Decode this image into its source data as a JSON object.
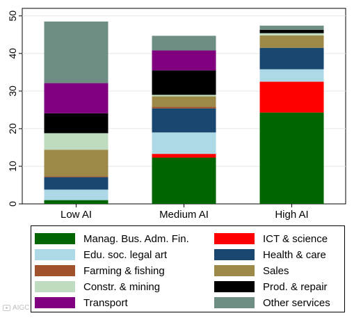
{
  "chart_data": {
    "type": "stacked-bar",
    "categories": [
      "Low AI",
      "Medium AI",
      "High AI"
    ],
    "ylim": [
      0,
      52
    ],
    "yticks": [
      0,
      10,
      20,
      30,
      40,
      50
    ],
    "grid": true,
    "legend_position": "bottom",
    "series": [
      {
        "name": "Manag. Bus. Adm. Fin.",
        "color": "#006400",
        "values": [
          1.0,
          12.3,
          24.3
        ]
      },
      {
        "name": "ICT & science",
        "color": "#ff0000",
        "values": [
          0.0,
          1.0,
          8.2
        ]
      },
      {
        "name": "Edu. soc. legal art",
        "color": "#add8e6",
        "values": [
          2.8,
          5.7,
          3.3
        ]
      },
      {
        "name": "Health & care",
        "color": "#1a476f",
        "values": [
          3.3,
          6.4,
          5.7
        ]
      },
      {
        "name": "Farming & fishing",
        "color": "#a0522d",
        "values": [
          0.2,
          0.4,
          0.0
        ]
      },
      {
        "name": "Sales",
        "color": "#9c8847",
        "values": [
          7.1,
          2.8,
          3.3
        ]
      },
      {
        "name": "Constr. & mining",
        "color": "#c0dcc0",
        "values": [
          4.4,
          0.4,
          0.6
        ]
      },
      {
        "name": "Prod. & repair",
        "color": "#000000",
        "values": [
          5.3,
          6.5,
          0.9
        ]
      },
      {
        "name": "Transport",
        "color": "#800080",
        "values": [
          8.0,
          5.3,
          0.0
        ]
      },
      {
        "name": "Other services",
        "color": "#6e8e84",
        "values": [
          16.4,
          3.9,
          1.1
        ]
      }
    ]
  },
  "watermark": "AIGC"
}
